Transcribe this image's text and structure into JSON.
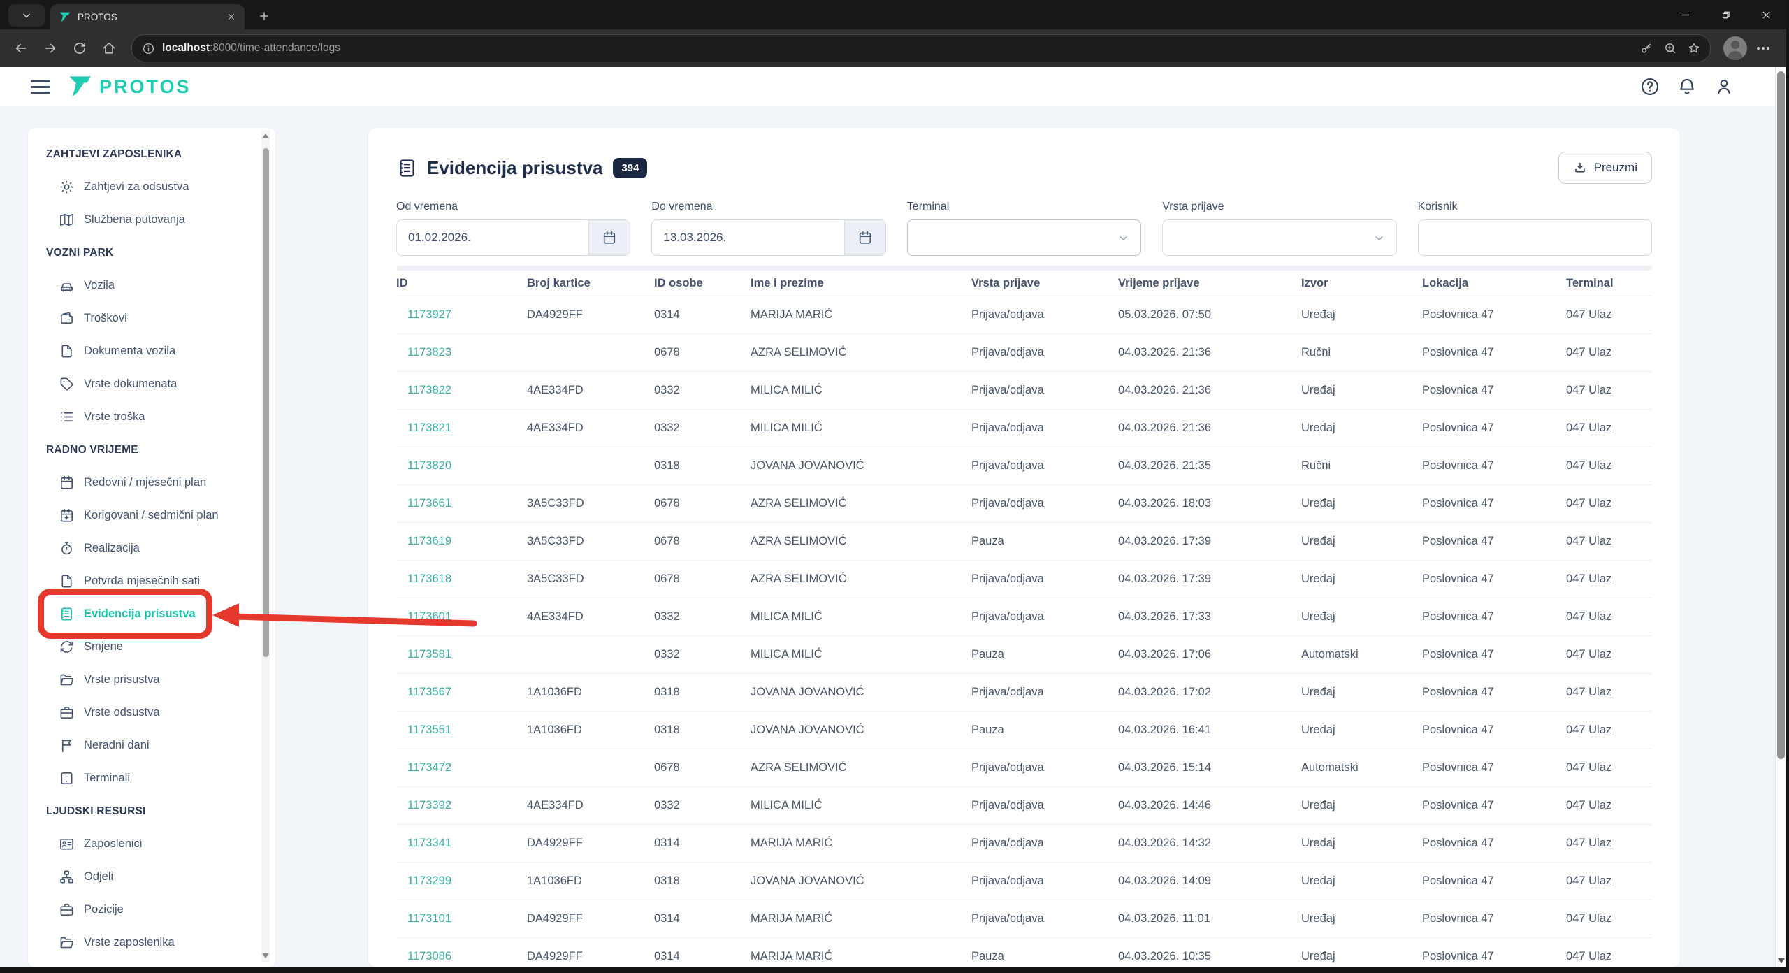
{
  "browser": {
    "tab_title": "PROTOS",
    "url_host": "localhost",
    "url_path": ":8000/time-attendance/logs"
  },
  "header": {
    "brand": "PROTOS"
  },
  "sidebar": {
    "sections": [
      {
        "label": "ZAHTJEVI ZAPOSLENIKA",
        "items": [
          {
            "label": "Zahtjevi za odsustva",
            "icon": "sun-icon"
          },
          {
            "label": "Službena putovanja",
            "icon": "map-icon"
          }
        ]
      },
      {
        "label": "VOZNI PARK",
        "items": [
          {
            "label": "Vozila",
            "icon": "car-icon"
          },
          {
            "label": "Troškovi",
            "icon": "wallet-icon"
          },
          {
            "label": "Dokumenta vozila",
            "icon": "file-icon"
          },
          {
            "label": "Vrste dokumenata",
            "icon": "tag-icon"
          },
          {
            "label": "Vrste troška",
            "icon": "list-icon"
          }
        ]
      },
      {
        "label": "RADNO VRIJEME",
        "items": [
          {
            "label": "Redovni / mjesečni plan",
            "icon": "calendar-icon"
          },
          {
            "label": "Korigovani / sedmični plan",
            "icon": "calendar-plus-icon"
          },
          {
            "label": "Realizacija",
            "icon": "stopwatch-icon"
          },
          {
            "label": "Potvrda mjesečnih sati",
            "icon": "file-icon"
          },
          {
            "label": "Evidencija prisustva",
            "icon": "journal-icon",
            "active": true,
            "annotated": true
          },
          {
            "label": "Smjene",
            "icon": "refresh-icon"
          },
          {
            "label": "Vrste prisustva",
            "icon": "folder-open-icon"
          },
          {
            "label": "Vrste odsustva",
            "icon": "briefcase-icon"
          },
          {
            "label": "Neradni dani",
            "icon": "flag-icon"
          },
          {
            "label": "Terminali",
            "icon": "terminal-icon"
          }
        ]
      },
      {
        "label": "LJUDSKI RESURSI",
        "items": [
          {
            "label": "Zaposlenici",
            "icon": "id-card-icon"
          },
          {
            "label": "Odjeli",
            "icon": "sitemap-icon"
          },
          {
            "label": "Pozicije",
            "icon": "briefcase-icon"
          },
          {
            "label": "Vrste zaposlenika",
            "icon": "folder-open-icon"
          }
        ]
      }
    ]
  },
  "main": {
    "title": "Evidencija prisustva",
    "title_icon": "journal-icon",
    "badge": "394",
    "download_label": "Preuzmi",
    "filters": [
      {
        "label": "Od vremena",
        "type": "date",
        "value": "01.02.2026.",
        "icon": "calendar-icon"
      },
      {
        "label": "Do vremena",
        "type": "date",
        "value": "13.03.2026.",
        "icon": "calendar-icon"
      },
      {
        "label": "Terminal",
        "type": "select",
        "value": "",
        "icon": "chevron-down-icon",
        "highlight": true
      },
      {
        "label": "Vrsta prijave",
        "type": "select",
        "value": "",
        "icon": "chevron-down-icon"
      },
      {
        "label": "Korisnik",
        "type": "text",
        "value": ""
      }
    ],
    "table": {
      "columns": [
        "ID",
        "Broj kartice",
        "ID osobe",
        "Ime i prezime",
        "Vrsta prijave",
        "Vrijeme prijave",
        "Izvor",
        "Lokacija",
        "Terminal"
      ],
      "rows": [
        [
          "1173927",
          "DA4929FF",
          "0314",
          "MARIJA MARIĆ",
          "Prijava/odjava",
          "05.03.2026. 07:50",
          "Uređaj",
          "Poslovnica 47",
          "047 Ulaz"
        ],
        [
          "1173823",
          "",
          "0678",
          "AZRA SELIMOVIĆ",
          "Prijava/odjava",
          "04.03.2026. 21:36",
          "Ručni",
          "Poslovnica 47",
          "047 Ulaz"
        ],
        [
          "1173822",
          "4AE334FD",
          "0332",
          "MILICA MILIĆ",
          "Prijava/odjava",
          "04.03.2026. 21:36",
          "Uređaj",
          "Poslovnica 47",
          "047 Ulaz"
        ],
        [
          "1173821",
          "4AE334FD",
          "0332",
          "MILICA MILIĆ",
          "Prijava/odjava",
          "04.03.2026. 21:36",
          "Uređaj",
          "Poslovnica 47",
          "047 Ulaz"
        ],
        [
          "1173820",
          "",
          "0318",
          "JOVANA JOVANOVIĆ",
          "Prijava/odjava",
          "04.03.2026. 21:35",
          "Ručni",
          "Poslovnica 47",
          "047 Ulaz"
        ],
        [
          "1173661",
          "3A5C33FD",
          "0678",
          "AZRA SELIMOVIĆ",
          "Prijava/odjava",
          "04.03.2026. 18:03",
          "Uređaj",
          "Poslovnica 47",
          "047 Ulaz"
        ],
        [
          "1173619",
          "3A5C33FD",
          "0678",
          "AZRA SELIMOVIĆ",
          "Pauza",
          "04.03.2026. 17:39",
          "Uređaj",
          "Poslovnica 47",
          "047 Ulaz"
        ],
        [
          "1173618",
          "3A5C33FD",
          "0678",
          "AZRA SELIMOVIĆ",
          "Prijava/odjava",
          "04.03.2026. 17:39",
          "Uređaj",
          "Poslovnica 47",
          "047 Ulaz"
        ],
        [
          "1173601",
          "4AE334FD",
          "0332",
          "MILICA MILIĆ",
          "Prijava/odjava",
          "04.03.2026. 17:33",
          "Uređaj",
          "Poslovnica 47",
          "047 Ulaz"
        ],
        [
          "1173581",
          "",
          "0332",
          "MILICA MILIĆ",
          "Pauza",
          "04.03.2026. 17:06",
          "Automatski",
          "Poslovnica 47",
          "047 Ulaz"
        ],
        [
          "1173567",
          "1A1036FD",
          "0318",
          "JOVANA JOVANOVIĆ",
          "Prijava/odjava",
          "04.03.2026. 17:02",
          "Uređaj",
          "Poslovnica 47",
          "047 Ulaz"
        ],
        [
          "1173551",
          "1A1036FD",
          "0318",
          "JOVANA JOVANOVIĆ",
          "Pauza",
          "04.03.2026. 16:41",
          "Uređaj",
          "Poslovnica 47",
          "047 Ulaz"
        ],
        [
          "1173472",
          "",
          "0678",
          "AZRA SELIMOVIĆ",
          "Prijava/odjava",
          "04.03.2026. 15:14",
          "Automatski",
          "Poslovnica 47",
          "047 Ulaz"
        ],
        [
          "1173392",
          "4AE334FD",
          "0332",
          "MILICA MILIĆ",
          "Prijava/odjava",
          "04.03.2026. 14:46",
          "Uređaj",
          "Poslovnica 47",
          "047 Ulaz"
        ],
        [
          "1173341",
          "DA4929FF",
          "0314",
          "MARIJA MARIĆ",
          "Prijava/odjava",
          "04.03.2026. 14:32",
          "Uređaj",
          "Poslovnica 47",
          "047 Ulaz"
        ],
        [
          "1173299",
          "1A1036FD",
          "0318",
          "JOVANA JOVANOVIĆ",
          "Prijava/odjava",
          "04.03.2026. 14:09",
          "Uređaj",
          "Poslovnica 47",
          "047 Ulaz"
        ],
        [
          "1173101",
          "DA4929FF",
          "0314",
          "MARIJA MARIĆ",
          "Prijava/odjava",
          "04.03.2026. 11:01",
          "Uređaj",
          "Poslovnica 47",
          "047 Ulaz"
        ],
        [
          "1173086",
          "DA4929FF",
          "0314",
          "MARIJA MARIĆ",
          "Pauza",
          "04.03.2026. 10:35",
          "Uređaj",
          "Poslovnica 47",
          "047 Ulaz"
        ]
      ]
    }
  },
  "colors": {
    "accent": "#1ecdb2",
    "link": "#38b2a2",
    "navy": "#22304f",
    "annotation": "#e5392e"
  }
}
